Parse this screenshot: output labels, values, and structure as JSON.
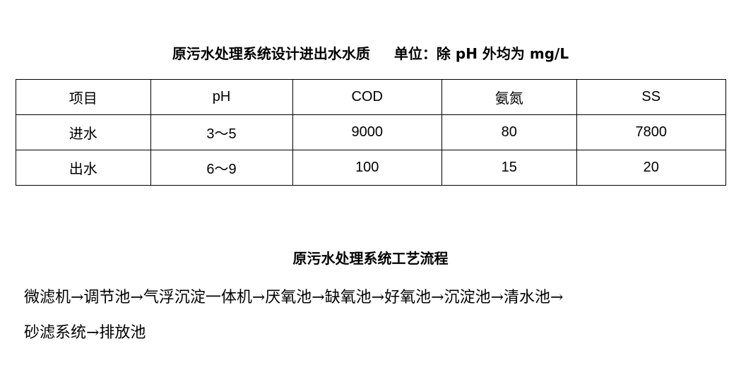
{
  "quality_title": "原污水处理系统设计进出水水质",
  "unit_note": "单位：除 pH 外均为 mg/L",
  "table": {
    "headers": [
      "项目",
      "pH",
      "COD",
      "氨氮",
      "SS"
    ],
    "rows": [
      [
        "进水",
        "3～5",
        "9000",
        "80",
        "7800"
      ],
      [
        "出水",
        "6～9",
        "100",
        "15",
        "20"
      ]
    ]
  },
  "process_title": "原污水处理系统工艺流程",
  "process_flow": {
    "line1": "微滤机→调节池→气浮沉淀一体机→厌氧池→缺氧池→好氧池→沉淀池→清水池→",
    "line2": "砂滤系统→排放池"
  }
}
